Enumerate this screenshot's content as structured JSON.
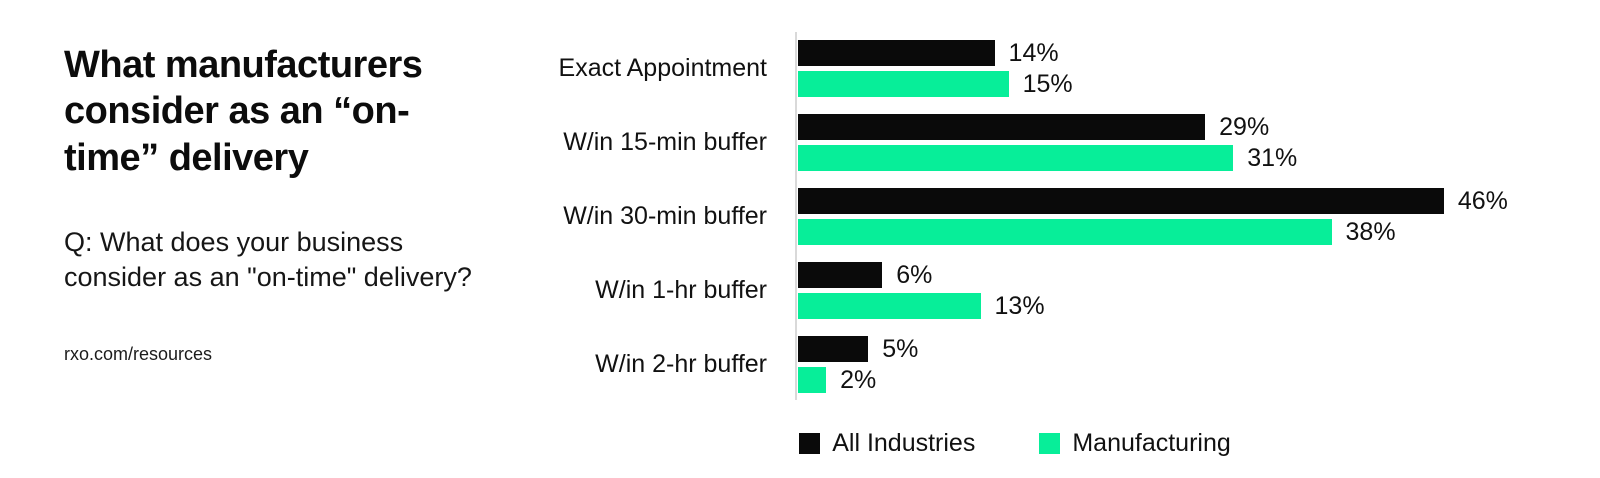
{
  "page": {
    "background": "#ffffff"
  },
  "left_panel": {
    "title": "What manufacturers consider as an “on-time” delivery",
    "question": "Q: What does your business consider as an \"on-time\" delivery?",
    "source": "rxo.com/resources"
  },
  "chart_data": {
    "type": "bar",
    "orientation": "horizontal",
    "title": "What manufacturers consider as an “on-time” delivery",
    "categories": [
      "Exact Appointment",
      "W/in 15-min buffer",
      "W/in 30-min buffer",
      "W/in 1-hr buffer",
      "W/in 2-hr buffer"
    ],
    "series": [
      {
        "name": "All Industries",
        "color": "#0a0a0a",
        "values": [
          14,
          29,
          46,
          6,
          5
        ]
      },
      {
        "name": "Manufacturing",
        "color": "#07ee99",
        "values": [
          15,
          31,
          38,
          13,
          2
        ]
      }
    ],
    "value_suffix": "%",
    "xlim": [
      0,
      50
    ],
    "grid": false,
    "axis_color": "#d9d9d9",
    "legend_position": "bottom"
  }
}
